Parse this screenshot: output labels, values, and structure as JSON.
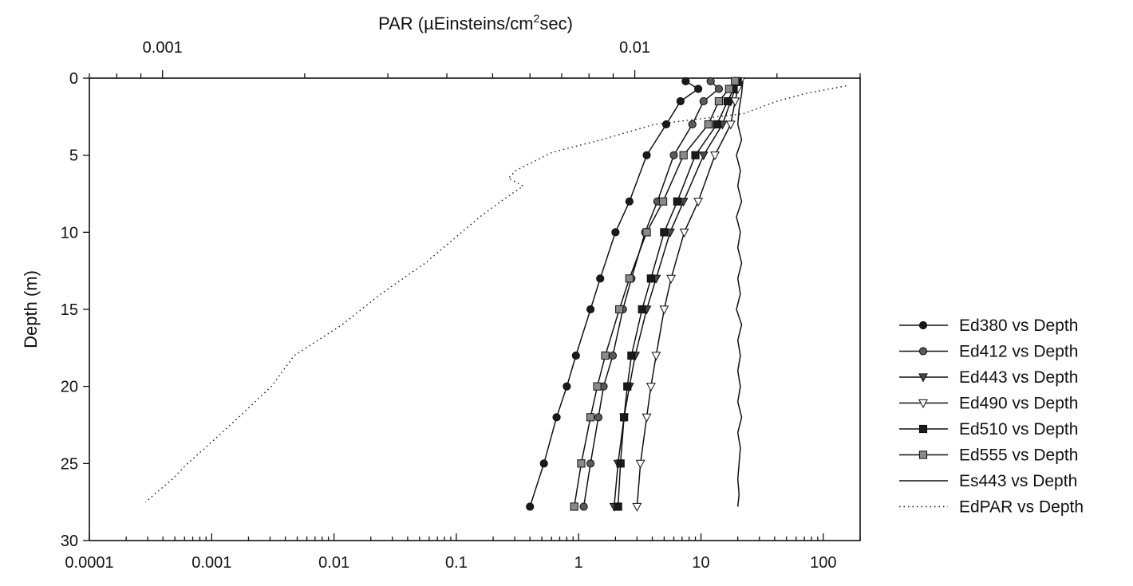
{
  "chart_data": {
    "type": "line",
    "title": "",
    "ylabel": "Depth (m)",
    "ylim": [
      0,
      30
    ],
    "y_inverted": true,
    "yticks": [
      "0",
      "5",
      "10",
      "15",
      "20",
      "25",
      "30"
    ],
    "bottom_axis": {
      "scale": "log",
      "range": [
        0.0001,
        200
      ],
      "ticks": [
        {
          "value": 0.0001,
          "label": "0.0001"
        },
        {
          "value": 0.001,
          "label": "0.001"
        },
        {
          "value": 0.01,
          "label": "0.01"
        },
        {
          "value": 0.1,
          "label": "0.1"
        },
        {
          "value": 1,
          "label": "1"
        },
        {
          "value": 10,
          "label": "10"
        },
        {
          "value": 100,
          "label": "100"
        }
      ]
    },
    "top_axis": {
      "label_main": "PAR (µEinsteins/cm",
      "label_sup": "2",
      "label_end": "sec)",
      "scale": "log",
      "range": [
        0.0007,
        0.03
      ],
      "ticks": [
        {
          "value": 0.001,
          "label": "0.001"
        },
        {
          "value": 0.01,
          "label": "0.01"
        }
      ]
    },
    "legend_position": "right",
    "grid": false,
    "series": [
      {
        "name": "Ed380 vs Depth",
        "marker": "circle",
        "marker_fill": "#1a1a1a",
        "line": "solid",
        "axis": "bottom",
        "depth": [
          0.2,
          0.7,
          1.5,
          3,
          5,
          8,
          10,
          13,
          15,
          18,
          20,
          22,
          25,
          27.8
        ],
        "values": [
          7.5,
          9.5,
          6.8,
          5.2,
          3.6,
          2.6,
          2.0,
          1.5,
          1.25,
          0.95,
          0.8,
          0.66,
          0.52,
          0.4
        ]
      },
      {
        "name": "Ed412 vs Depth",
        "marker": "circle",
        "marker_fill": "#5a5a5a",
        "line": "solid",
        "axis": "bottom",
        "depth": [
          0.2,
          0.7,
          1.5,
          3,
          5,
          8,
          10,
          13,
          15,
          18,
          20,
          22,
          25,
          27.8
        ],
        "values": [
          12,
          14,
          10.5,
          8.5,
          6.0,
          4.4,
          3.5,
          2.7,
          2.3,
          1.9,
          1.6,
          1.45,
          1.25,
          1.1
        ]
      },
      {
        "name": "Ed443 vs Depth",
        "marker": "triangle-down",
        "marker_fill": "#4a4a4a",
        "line": "solid",
        "axis": "bottom",
        "depth": [
          0.2,
          0.7,
          1.5,
          3,
          5,
          8,
          10,
          13,
          15,
          18,
          20,
          22,
          25,
          27.8
        ],
        "values": [
          20,
          19,
          17.5,
          15,
          10.5,
          7.2,
          5.6,
          4.3,
          3.6,
          2.9,
          2.6,
          2.35,
          2.1,
          1.95
        ]
      },
      {
        "name": "Ed490 vs Depth",
        "marker": "triangle-down",
        "marker_fill": "#ffffff",
        "line": "solid",
        "axis": "bottom",
        "depth": [
          0.2,
          0.7,
          1.5,
          3,
          5,
          8,
          10,
          13,
          15,
          18,
          20,
          22,
          25,
          27.8
        ],
        "values": [
          21,
          20,
          19,
          17.5,
          13,
          9.5,
          7.3,
          5.7,
          5.0,
          4.3,
          3.9,
          3.6,
          3.2,
          3.0
        ]
      },
      {
        "name": "Ed510 vs Depth",
        "marker": "square",
        "marker_fill": "#1a1a1a",
        "line": "solid",
        "axis": "bottom",
        "depth": [
          0.2,
          0.7,
          1.5,
          3,
          5,
          8,
          10,
          13,
          15,
          18,
          20,
          22,
          25,
          27.8
        ],
        "values": [
          20,
          18.5,
          16.5,
          13.5,
          9.0,
          6.4,
          5.0,
          3.9,
          3.3,
          2.7,
          2.5,
          2.35,
          2.2,
          2.1
        ]
      },
      {
        "name": "Ed555 vs Depth",
        "marker": "square",
        "marker_fill": "#8a8a8a",
        "line": "solid",
        "axis": "bottom",
        "depth": [
          0.2,
          0.7,
          1.5,
          3,
          5,
          8,
          10,
          13,
          15,
          18,
          20,
          22,
          25,
          27.8
        ],
        "values": [
          19,
          17,
          14,
          11.5,
          7.2,
          4.9,
          3.6,
          2.6,
          2.15,
          1.65,
          1.42,
          1.25,
          1.05,
          0.92
        ]
      },
      {
        "name": "Es443 vs Depth",
        "marker": "none",
        "line": "solid",
        "axis": "bottom",
        "depth": [
          0.2,
          1,
          2,
          3,
          4,
          5,
          6,
          7,
          8,
          9,
          10,
          11,
          12,
          13,
          14,
          15,
          16,
          17,
          18,
          19,
          20,
          21,
          22,
          23,
          24,
          25,
          26,
          27,
          27.8
        ],
        "values": [
          22,
          21.5,
          20.5,
          20,
          21.5,
          19.5,
          21,
          20,
          21.5,
          19.5,
          21,
          20,
          21.5,
          20,
          21,
          19.5,
          21.5,
          20,
          21,
          20,
          21,
          20,
          21.5,
          20,
          21,
          20.5,
          20,
          20.5,
          20
        ]
      },
      {
        "name": "EdPAR vs Depth",
        "marker": "none",
        "line": "dotted",
        "axis": "top",
        "depth": [
          0.5,
          1,
          1.5,
          2.3,
          3,
          4,
          4.8,
          6,
          6.5,
          7,
          8,
          9,
          10,
          12,
          14,
          16,
          18,
          20,
          22,
          24,
          25,
          26,
          27.5
        ],
        "values": [
          0.028,
          0.023,
          0.02,
          0.017,
          0.011,
          0.0085,
          0.0067,
          0.0056,
          0.0054,
          0.0058,
          0.0052,
          0.0047,
          0.0043,
          0.0036,
          0.0029,
          0.0024,
          0.0019,
          0.0017,
          0.00145,
          0.00123,
          0.00113,
          0.00105,
          0.00092
        ]
      }
    ]
  }
}
